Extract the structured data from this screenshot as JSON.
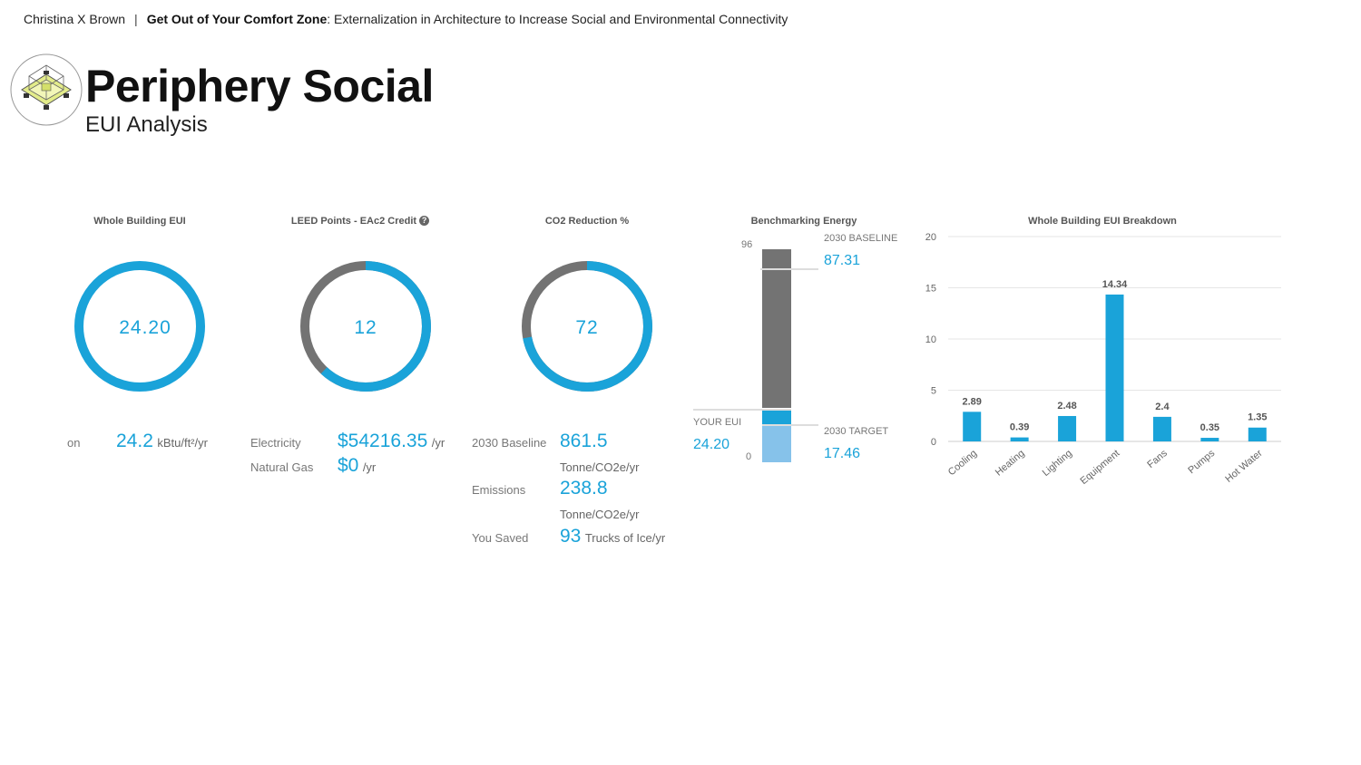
{
  "header": {
    "author": "Christina X Brown",
    "separator": "|",
    "thesis_bold": "Get Out of Your Comfort Zone",
    "thesis_rest": ": Externalization in Architecture to Increase Social and Environmental Connectivity"
  },
  "page": {
    "title": "Periphery Social",
    "subtitle": "EUI Analysis"
  },
  "colors": {
    "accent": "#1aa3d9",
    "gray": "#737373",
    "light_blue": "#86c2ea"
  },
  "eui_card": {
    "title": "Whole Building EUI",
    "value": "24.20",
    "row_label": "on",
    "row_value": "24.2",
    "row_unit": "kBtu/ft²/yr",
    "fill_fraction": 1.0
  },
  "leed_card": {
    "title": "LEED Points - EAc2 Credit",
    "help_icon": "question-circle-icon",
    "help_glyph": "?",
    "value": "12",
    "fill_fraction": 0.62,
    "electricity_label": "Electricity",
    "electricity_value": "$54216.35",
    "electricity_unit": "/yr",
    "gas_label": "Natural Gas",
    "gas_value": "$0",
    "gas_unit": "/yr"
  },
  "co2_card": {
    "title": "CO2 Reduction %",
    "value": "72",
    "fill_fraction": 0.72,
    "baseline_label": "2030 Baseline",
    "baseline_value": "861.5",
    "baseline_unit": "Tonne/CO2e/yr",
    "emissions_label": "Emissions",
    "emissions_value": "238.8",
    "emissions_unit": "Tonne/CO2e/yr",
    "saved_label": "You Saved",
    "saved_value": "93",
    "saved_unit": "Trucks of Ice/yr"
  },
  "benchmark": {
    "title": "Benchmarking Energy",
    "axis_max": "96",
    "axis_min": "0",
    "baseline_label": "2030 BASELINE",
    "baseline_value": "87.31",
    "your_label": "YOUR EUI",
    "your_value": "24.20",
    "target_label": "2030 TARGET",
    "target_value": "17.46"
  },
  "chart_data": {
    "type": "bar",
    "title": "Whole Building EUI Breakdown",
    "categories": [
      "Cooling",
      "Heating",
      "Lighting",
      "Equipment",
      "Fans",
      "Pumps",
      "Hot Water"
    ],
    "values": [
      2.89,
      0.39,
      2.48,
      14.34,
      2.4,
      0.35,
      1.35
    ],
    "value_labels": [
      "2.89",
      "0.39",
      "2.48",
      "14.34",
      "2.4",
      "0.35",
      "1.35"
    ],
    "yticks": [
      0,
      5,
      10,
      15,
      20
    ],
    "ylim": [
      0,
      20
    ],
    "xlabel": "",
    "ylabel": "",
    "grid": true,
    "color": "#1aa3d9"
  }
}
